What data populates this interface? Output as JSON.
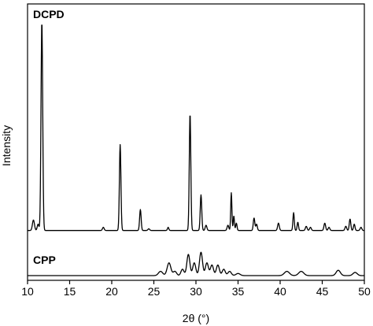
{
  "chart_data": {
    "type": "line",
    "xlabel": "2θ (°)",
    "ylabel": "Intensity",
    "xlim": [
      10,
      50
    ],
    "x_ticks": [
      10,
      15,
      20,
      25,
      30,
      35,
      40,
      45,
      50
    ],
    "x_tick_labels": [
      "10",
      "15",
      "20",
      "25",
      "30",
      "35",
      "40",
      "45",
      "50"
    ],
    "y_ticks": "none",
    "grid": false,
    "legend": "none",
    "layout": "stacked",
    "line_color": "#000000",
    "series": [
      {
        "name": "DCPD",
        "baseline": 0.02,
        "peaks": [
          [
            10.7,
            0.05,
            0.12
          ],
          [
            11.25,
            0.03,
            0.1
          ],
          [
            11.7,
            1.0,
            0.1
          ],
          [
            19.0,
            0.015,
            0.1
          ],
          [
            21.0,
            0.41,
            0.09
          ],
          [
            23.4,
            0.1,
            0.09
          ],
          [
            24.4,
            0.008,
            0.1
          ],
          [
            26.7,
            0.015,
            0.08
          ],
          [
            29.3,
            0.56,
            0.09
          ],
          [
            30.6,
            0.17,
            0.09
          ],
          [
            31.2,
            0.025,
            0.1
          ],
          [
            33.8,
            0.025,
            0.1
          ],
          [
            34.2,
            0.18,
            0.07
          ],
          [
            34.5,
            0.07,
            0.07
          ],
          [
            34.8,
            0.035,
            0.08
          ],
          [
            36.9,
            0.06,
            0.09
          ],
          [
            37.2,
            0.03,
            0.09
          ],
          [
            39.8,
            0.035,
            0.1
          ],
          [
            41.6,
            0.085,
            0.08
          ],
          [
            42.1,
            0.04,
            0.08
          ],
          [
            43.1,
            0.02,
            0.1
          ],
          [
            43.6,
            0.015,
            0.1
          ],
          [
            45.3,
            0.035,
            0.1
          ],
          [
            45.8,
            0.015,
            0.1
          ],
          [
            47.8,
            0.02,
            0.1
          ],
          [
            48.3,
            0.055,
            0.09
          ],
          [
            48.8,
            0.03,
            0.09
          ],
          [
            49.6,
            0.015,
            0.1
          ]
        ]
      },
      {
        "name": "CPP",
        "baseline": 0.0,
        "peaks": [
          [
            25.8,
            0.02,
            0.25
          ],
          [
            26.8,
            0.06,
            0.22
          ],
          [
            27.5,
            0.02,
            0.2
          ],
          [
            28.4,
            0.03,
            0.18
          ],
          [
            29.1,
            0.1,
            0.18
          ],
          [
            29.8,
            0.06,
            0.18
          ],
          [
            30.6,
            0.11,
            0.18
          ],
          [
            31.3,
            0.06,
            0.18
          ],
          [
            31.9,
            0.05,
            0.18
          ],
          [
            32.6,
            0.05,
            0.18
          ],
          [
            33.3,
            0.03,
            0.18
          ],
          [
            34.0,
            0.02,
            0.2
          ],
          [
            35.0,
            0.01,
            0.25
          ],
          [
            40.8,
            0.02,
            0.3
          ],
          [
            42.5,
            0.02,
            0.3
          ],
          [
            46.9,
            0.025,
            0.25
          ],
          [
            48.9,
            0.015,
            0.25
          ]
        ]
      }
    ]
  }
}
